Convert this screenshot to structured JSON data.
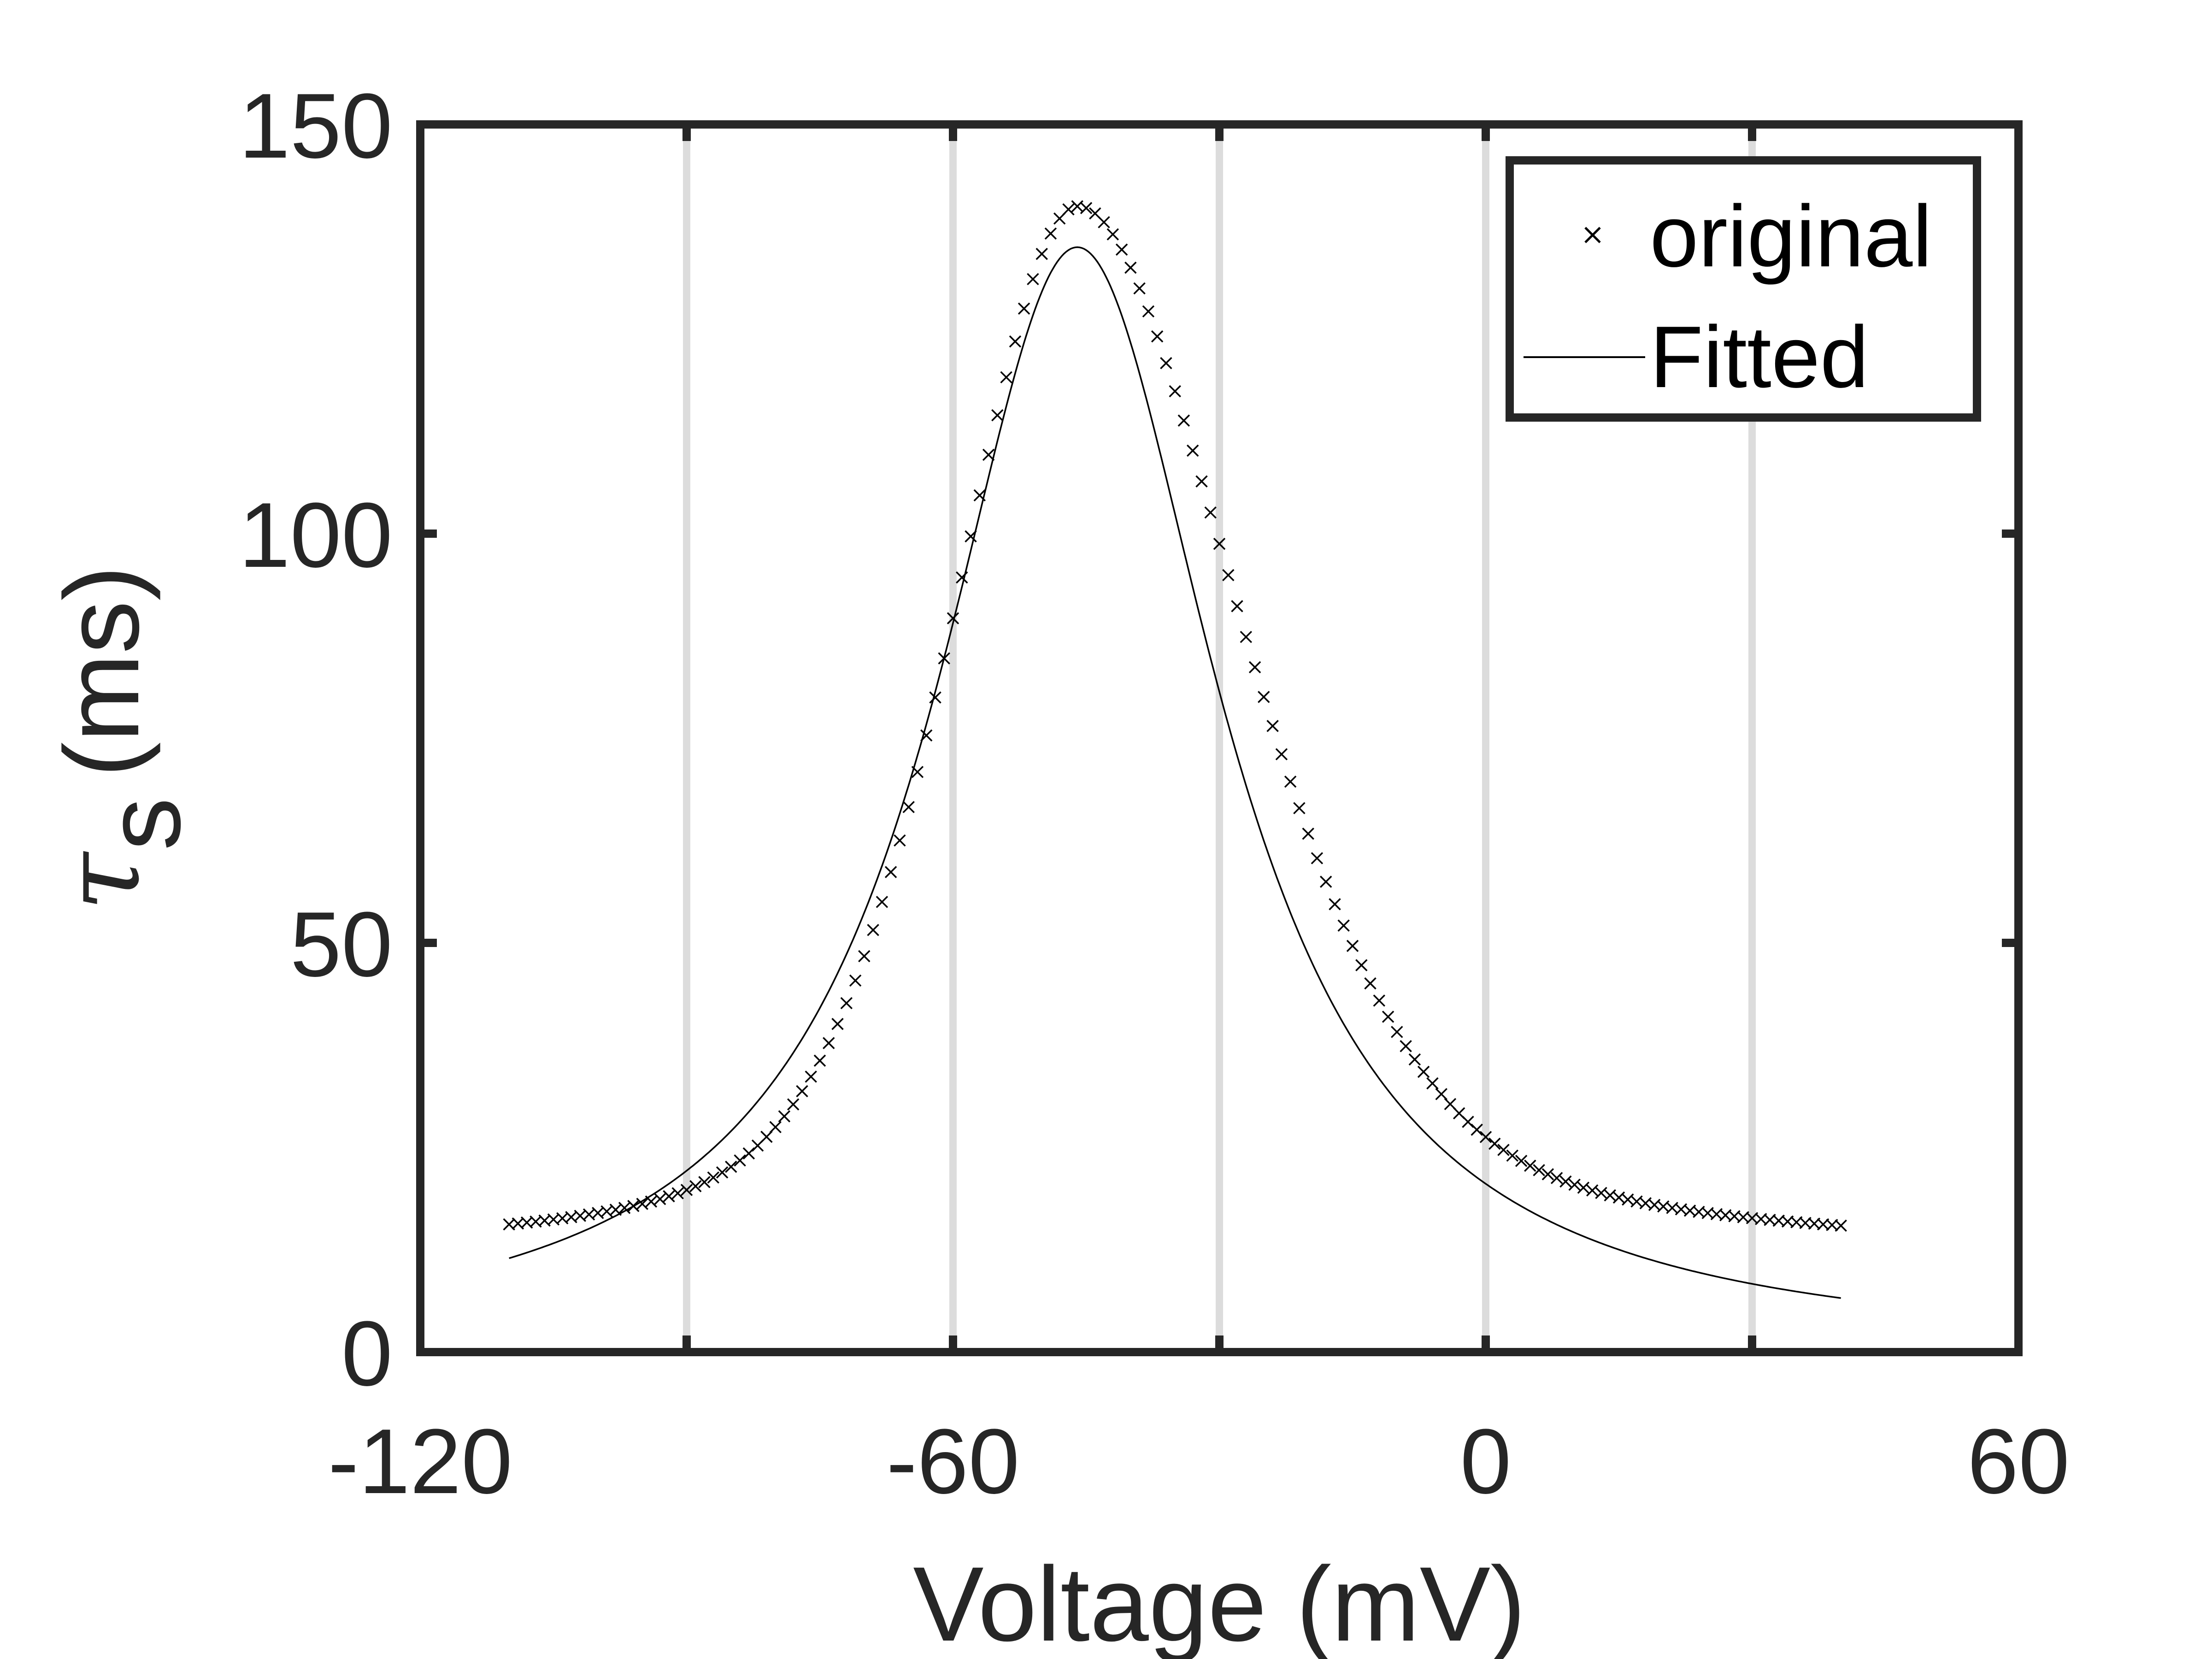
{
  "chart_data": {
    "type": "scatter",
    "title": "",
    "xlabel": "Voltage (mV)",
    "ylabel_symbol": "τ",
    "ylabel_subscript": "s",
    "ylabel_unit": "(ms)",
    "xlim": [
      -120,
      60
    ],
    "ylim": [
      0,
      150
    ],
    "xticks": [
      -120,
      -60,
      0,
      60
    ],
    "yticks": [
      0,
      50,
      100,
      150
    ],
    "xgrid": [
      -90,
      -60,
      -30,
      0,
      30
    ],
    "grid": true,
    "legend_position": "top-right",
    "colors": {
      "axis": "#262626",
      "grid": "#dcdcdc",
      "series": "#000000"
    },
    "series": [
      {
        "name": "original",
        "style": "x-marker",
        "formula": {
          "peak": 140,
          "center": -46,
          "width": 14,
          "floor": 12,
          "decay_left": 10,
          "decay_right": 18,
          "stretch_left": 1.18,
          "stretch_right": 1.55
        },
        "x_range": [
          -110,
          40
        ],
        "n_points": 151
      },
      {
        "name": "Fitted",
        "style": "line",
        "formula": {
          "peak": 135,
          "center": -46,
          "width": 19.5,
          "floor": 0
        },
        "x_range": [
          -110,
          40
        ]
      }
    ]
  }
}
